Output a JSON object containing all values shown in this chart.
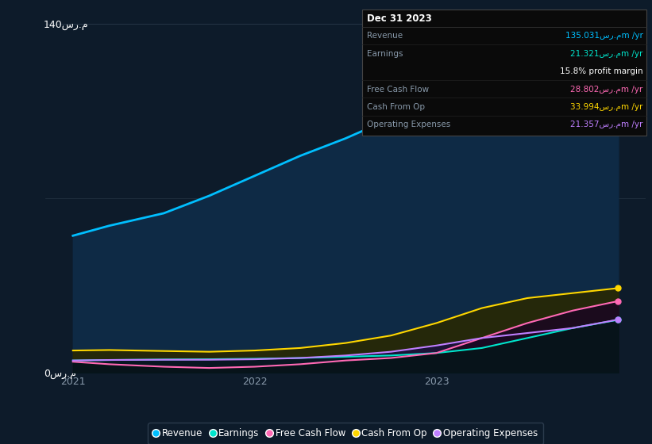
{
  "bg_color": "#0d1b2a",
  "plot_bg_color": "#0d1b2a",
  "x_years": [
    2021.0,
    2021.2,
    2021.5,
    2021.75,
    2022.0,
    2022.25,
    2022.5,
    2022.75,
    2023.0,
    2023.25,
    2023.5,
    2023.75,
    2024.0
  ],
  "revenue": [
    55,
    59,
    64,
    71,
    79,
    87,
    94,
    102,
    110,
    118,
    125,
    131,
    135
  ],
  "earnings": [
    5,
    5.2,
    5.4,
    5.5,
    5.7,
    6.0,
    6.5,
    7.0,
    8.0,
    10,
    14,
    18,
    21.3
  ],
  "free_cash": [
    4.5,
    3.5,
    2.5,
    2.0,
    2.5,
    3.5,
    5,
    6,
    8,
    14,
    20,
    25,
    28.8
  ],
  "cash_op": [
    9,
    9.2,
    8.8,
    8.5,
    9.0,
    10,
    12,
    15,
    20,
    26,
    30,
    32,
    34
  ],
  "op_expenses": [
    5,
    5.2,
    5.3,
    5.3,
    5.5,
    6.0,
    7.0,
    8.5,
    11,
    14,
    16,
    18,
    21.4
  ],
  "revenue_color": "#00bfff",
  "earnings_color": "#00e5cc",
  "free_cash_color": "#ff69b4",
  "cash_op_color": "#ffd700",
  "op_expenses_color": "#bf7fff",
  "ylim": [
    0,
    145
  ],
  "yticks": [
    0,
    140
  ],
  "ytick_labels": [
    "0سر.م",
    "140سر.م"
  ],
  "xtick_labels": [
    "2021",
    "2022",
    "2023"
  ],
  "xtick_positions": [
    2021,
    2022,
    2023
  ],
  "grid_color": "#253545",
  "text_color": "#8899aa",
  "legend_labels": [
    "Revenue",
    "Earnings",
    "Free Cash Flow",
    "Cash From Op",
    "Operating Expenses"
  ],
  "info_box_title": "Dec 31 2023",
  "info_rows": [
    {
      "label": "Revenue",
      "value": "135.031سر.مm /yr",
      "color": "#00bfff"
    },
    {
      "label": "Earnings",
      "value": "21.321سر.مm /yr",
      "color": "#00e5cc"
    },
    {
      "label": "",
      "value": "15.8% profit margin",
      "color": "#ffffff"
    },
    {
      "label": "Free Cash Flow",
      "value": "28.802سر.مm /yr",
      "color": "#ff69b4"
    },
    {
      "label": "Cash From Op",
      "value": "33.994سر.مm /yr",
      "color": "#ffd700"
    },
    {
      "label": "Operating Expenses",
      "value": "21.357سر.مm /yr",
      "color": "#bf7fff"
    }
  ]
}
